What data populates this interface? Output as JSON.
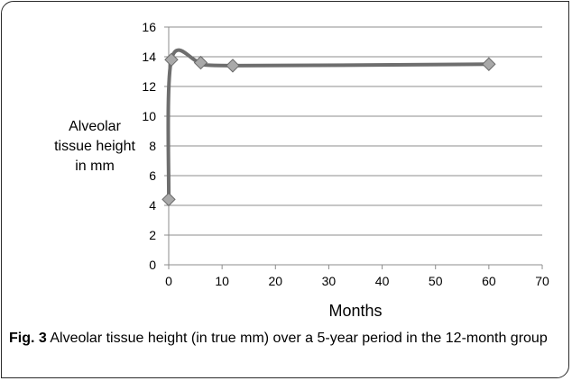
{
  "chart_data": {
    "type": "scatter",
    "title": "",
    "xlabel": "Months",
    "ylabel_lines": [
      "Alveolar",
      "tissue height",
      "in mm"
    ],
    "xlim": [
      0,
      70
    ],
    "ylim": [
      0,
      16
    ],
    "xticks": [
      0,
      10,
      20,
      30,
      40,
      50,
      60,
      70
    ],
    "yticks": [
      0,
      2,
      4,
      6,
      8,
      10,
      12,
      14,
      16
    ],
    "grid": "horizontal",
    "smooth": true,
    "series": [
      {
        "x": [
          0,
          0.5,
          6,
          12,
          60
        ],
        "y": [
          4.4,
          13.8,
          13.6,
          13.4,
          13.5
        ]
      }
    ],
    "line_color": "#6e6e6e",
    "marker_color": "#a9a9a9",
    "marker": "diamond"
  },
  "caption": {
    "label": "Fig. 3",
    "text": " Alveolar tissue height (in true mm) over a 5-year period in the 12-month group"
  }
}
